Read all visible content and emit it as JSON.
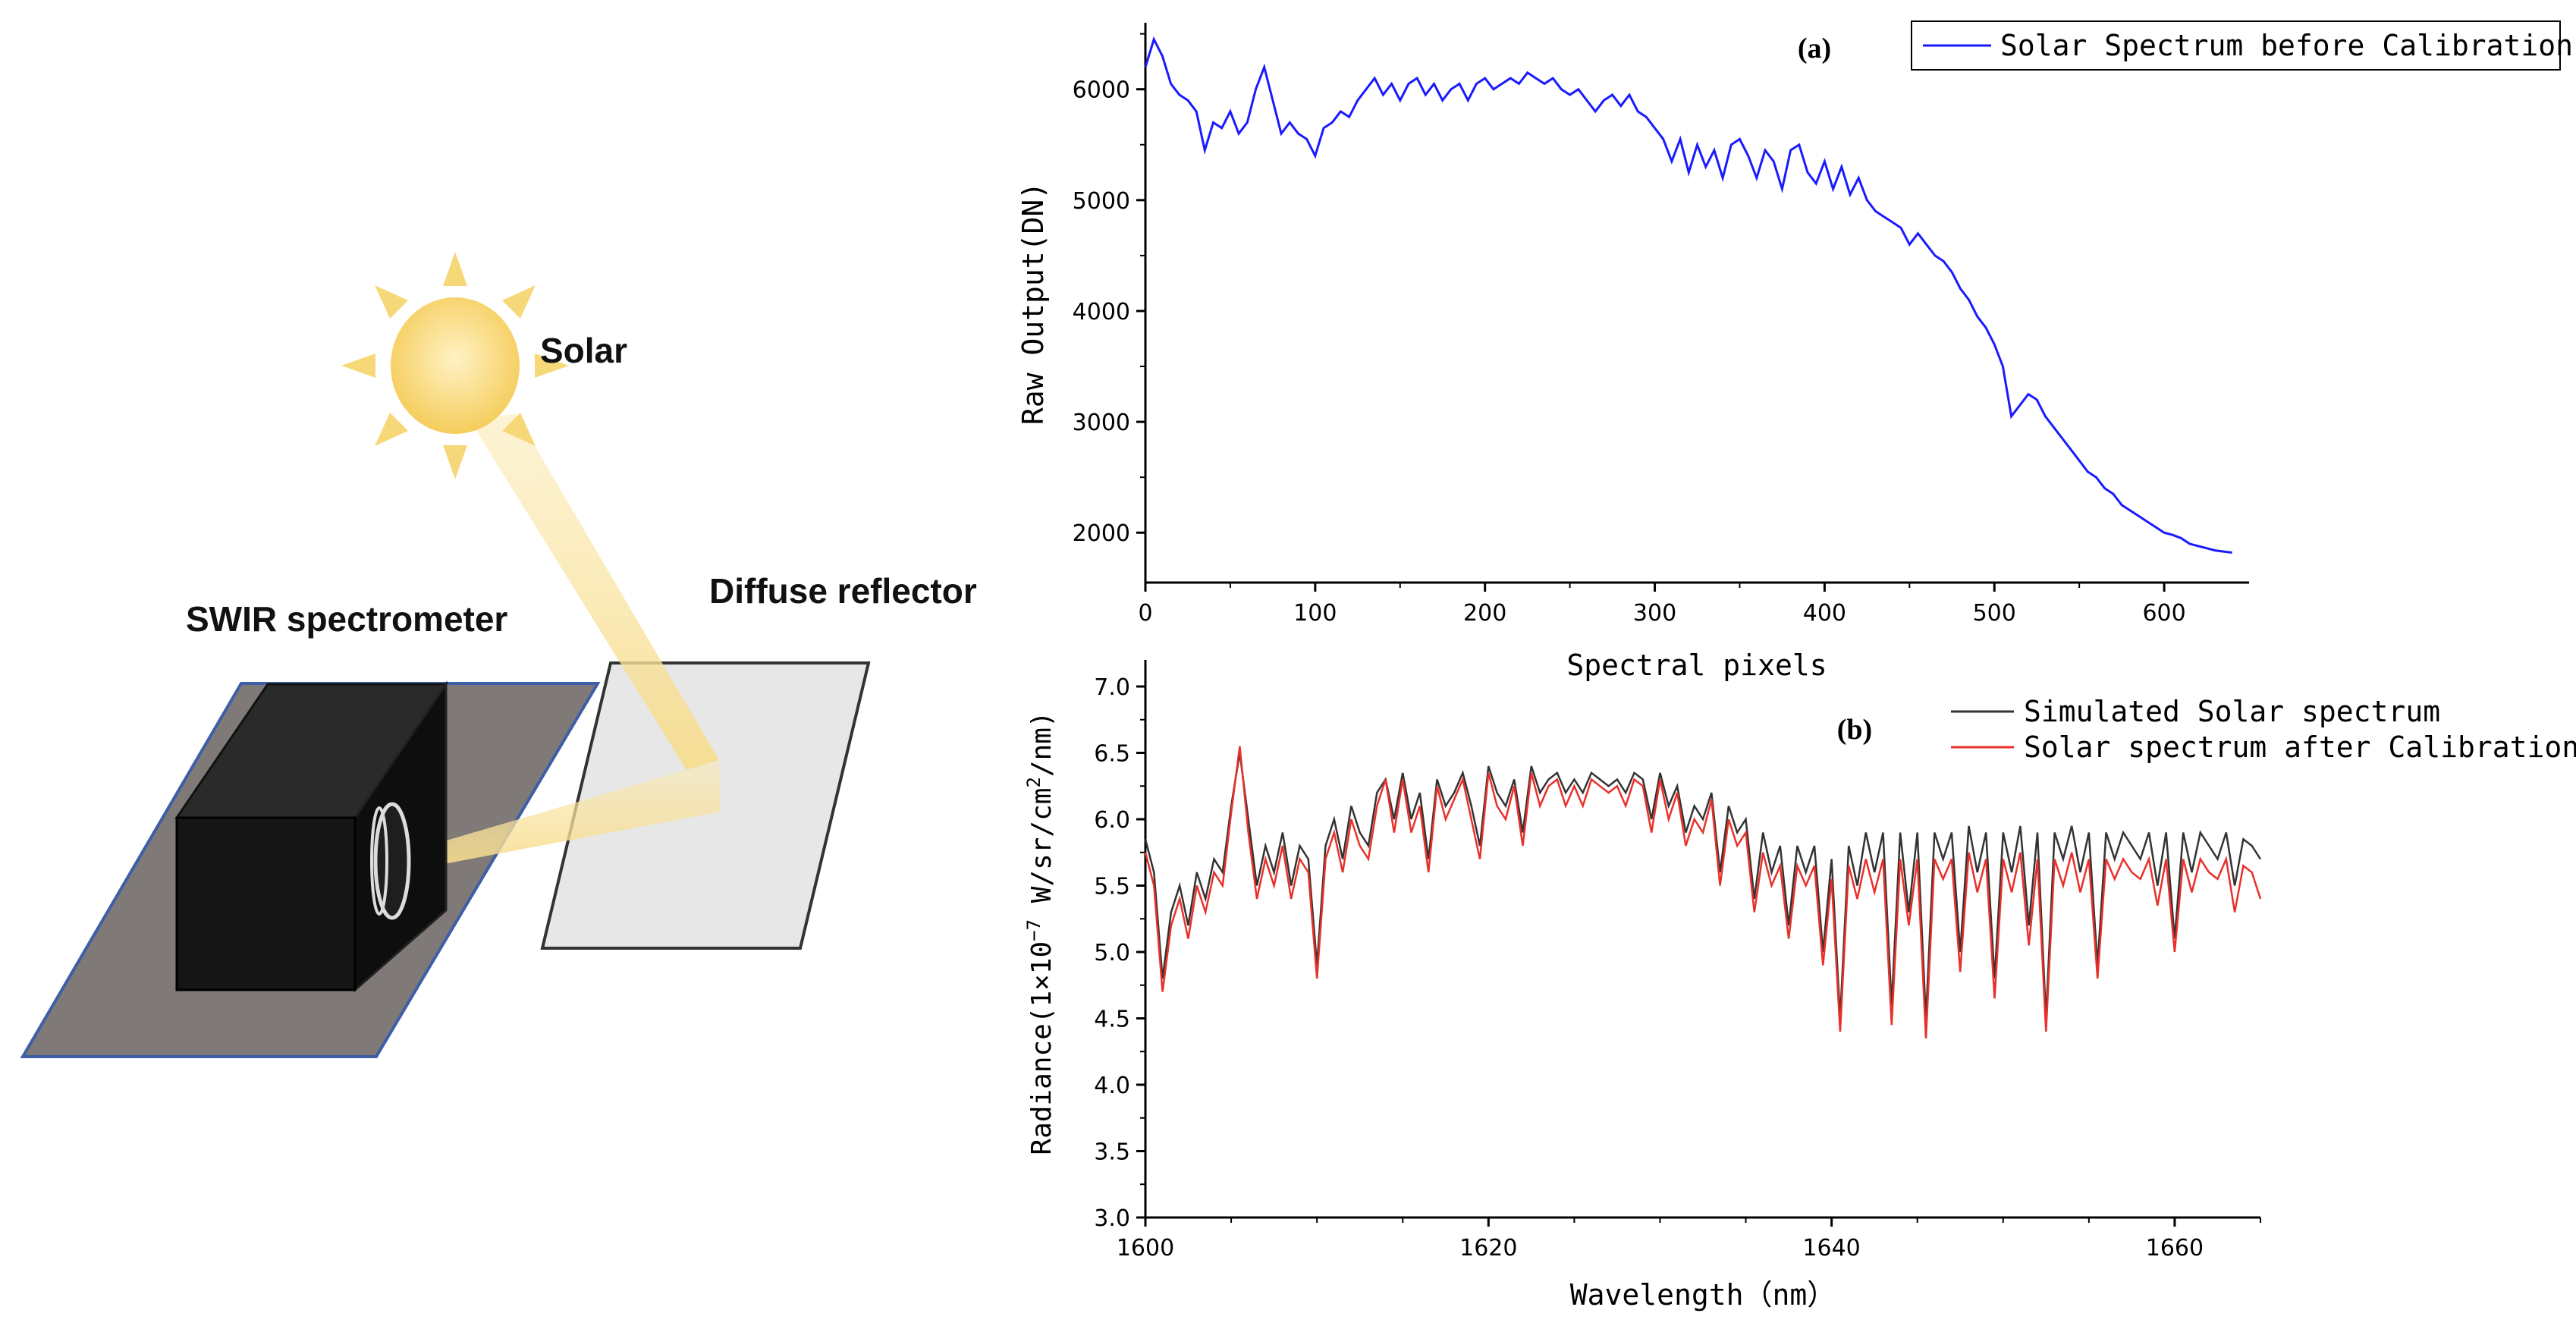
{
  "scene": {
    "sun_label": "Solar",
    "spectrometer_label": "SWIR spectrometer",
    "reflector_label": "Diffuse reflector",
    "colors": {
      "sun": "#f7d36b",
      "beam": "#f9e7a6",
      "platform": "#7f7a78",
      "platform_border": "#3f5ea8",
      "box": "#171717",
      "reflector": "#e7e7e7"
    }
  },
  "chart_data": [
    {
      "type": "line",
      "panel_label": "(a)",
      "xlabel": "Spectral pixels",
      "ylabel": "Raw Output(DN)",
      "xlim": [
        0,
        650
      ],
      "ylim": [
        1550,
        6600
      ],
      "xticks": [
        0,
        100,
        200,
        300,
        400,
        500,
        600
      ],
      "yticks": [
        2000,
        3000,
        4000,
        5000,
        6000
      ],
      "legend_position": "top-right",
      "series": [
        {
          "name": "Solar Spectrum before Calibration",
          "color": "#1a1aff",
          "x": [
            0,
            5,
            10,
            15,
            20,
            25,
            30,
            35,
            40,
            45,
            50,
            55,
            60,
            65,
            70,
            75,
            80,
            85,
            90,
            95,
            100,
            105,
            110,
            115,
            120,
            125,
            130,
            135,
            140,
            145,
            150,
            155,
            160,
            165,
            170,
            175,
            180,
            185,
            190,
            195,
            200,
            205,
            210,
            215,
            220,
            225,
            230,
            235,
            240,
            245,
            250,
            255,
            260,
            265,
            270,
            275,
            280,
            285,
            290,
            295,
            300,
            305,
            310,
            315,
            320,
            325,
            330,
            335,
            340,
            345,
            350,
            355,
            360,
            365,
            370,
            375,
            380,
            385,
            390,
            395,
            400,
            405,
            410,
            415,
            420,
            425,
            430,
            435,
            440,
            445,
            450,
            455,
            460,
            465,
            470,
            475,
            480,
            485,
            490,
            495,
            500,
            505,
            510,
            515,
            520,
            525,
            530,
            535,
            540,
            545,
            550,
            555,
            560,
            565,
            570,
            575,
            580,
            585,
            590,
            595,
            600,
            605,
            610,
            615,
            620,
            625,
            630,
            635,
            640
          ],
          "y": [
            6200,
            6450,
            6300,
            6050,
            5950,
            5900,
            5800,
            5450,
            5700,
            5650,
            5800,
            5600,
            5700,
            6000,
            6200,
            5900,
            5600,
            5700,
            5600,
            5550,
            5400,
            5650,
            5700,
            5800,
            5750,
            5900,
            6000,
            6100,
            5950,
            6050,
            5900,
            6050,
            6100,
            5950,
            6050,
            5900,
            6000,
            6050,
            5900,
            6050,
            6100,
            6000,
            6050,
            6100,
            6050,
            6150,
            6100,
            6050,
            6100,
            6000,
            5950,
            6000,
            5900,
            5800,
            5900,
            5950,
            5850,
            5950,
            5800,
            5750,
            5650,
            5550,
            5350,
            5550,
            5250,
            5500,
            5300,
            5450,
            5200,
            5500,
            5550,
            5400,
            5200,
            5450,
            5350,
            5100,
            5450,
            5500,
            5250,
            5150,
            5350,
            5100,
            5300,
            5050,
            5200,
            5000,
            4900,
            4850,
            4800,
            4750,
            4600,
            4700,
            4600,
            4500,
            4450,
            4350,
            4200,
            4100,
            3950,
            3850,
            3700,
            3500,
            3050,
            3150,
            3250,
            3200,
            3050,
            2950,
            2850,
            2750,
            2650,
            2550,
            2500,
            2400,
            2350,
            2250,
            2200,
            2150,
            2100,
            2050,
            2000,
            1980,
            1950,
            1900,
            1880,
            1860,
            1840,
            1830,
            1820
          ]
        }
      ]
    },
    {
      "type": "line",
      "panel_label": "(b)",
      "xlabel": "Wavelength（nm）",
      "ylabel": "Radiance(1×10",
      "ylabel_exp": "−7",
      "ylabel_tail": " W/sr/cm",
      "ylabel_exp2": "2",
      "ylabel_end": "/nm)",
      "xlim": [
        1600,
        1665
      ],
      "ylim": [
        3.0,
        7.2
      ],
      "xticks": [
        1600,
        1620,
        1640,
        1660
      ],
      "yticks": [
        3.0,
        3.5,
        4.0,
        4.5,
        5.0,
        5.5,
        6.0,
        6.5,
        7.0
      ],
      "yticklabels": [
        "3.0",
        "3.5",
        "4.0",
        "4.5",
        "5.0",
        "5.5",
        "6.0",
        "6.5",
        "7.0"
      ],
      "legend_position": "top-right",
      "series": [
        {
          "name": "Simulated Solar spectrum",
          "color": "#333333",
          "x": [
            1600,
            1600.5,
            1601,
            1601.5,
            1602,
            1602.5,
            1603,
            1603.5,
            1604,
            1604.5,
            1605,
            1605.5,
            1606,
            1606.5,
            1607,
            1607.5,
            1608,
            1608.5,
            1609,
            1609.5,
            1610,
            1610.5,
            1611,
            1611.5,
            1612,
            1612.5,
            1613,
            1613.5,
            1614,
            1614.5,
            1615,
            1615.5,
            1616,
            1616.5,
            1617,
            1617.5,
            1618,
            1618.5,
            1619,
            1619.5,
            1620,
            1620.5,
            1621,
            1621.5,
            1622,
            1622.5,
            1623,
            1623.5,
            1624,
            1624.5,
            1625,
            1625.5,
            1626,
            1626.5,
            1627,
            1627.5,
            1628,
            1628.5,
            1629,
            1629.5,
            1630,
            1630.5,
            1631,
            1631.5,
            1632,
            1632.5,
            1633,
            1633.5,
            1634,
            1634.5,
            1635,
            1635.5,
            1636,
            1636.5,
            1637,
            1637.5,
            1638,
            1638.5,
            1639,
            1639.5,
            1640,
            1640.5,
            1641,
            1641.5,
            1642,
            1642.5,
            1643,
            1643.5,
            1644,
            1644.5,
            1645,
            1645.5,
            1646,
            1646.5,
            1647,
            1647.5,
            1648,
            1648.5,
            1649,
            1649.5,
            1650,
            1650.5,
            1651,
            1651.5,
            1652,
            1652.5,
            1653,
            1653.5,
            1654,
            1654.5,
            1655,
            1655.5,
            1656,
            1656.5,
            1657,
            1657.5,
            1658,
            1658.5,
            1659,
            1659.5,
            1660,
            1660.5,
            1661,
            1661.5,
            1662,
            1662.5,
            1663,
            1663.5,
            1664,
            1664.5,
            1665
          ],
          "y": [
            5.85,
            5.6,
            4.8,
            5.3,
            5.5,
            5.2,
            5.6,
            5.4,
            5.7,
            5.6,
            6.1,
            6.5,
            6.0,
            5.5,
            5.8,
            5.6,
            5.9,
            5.5,
            5.8,
            5.7,
            4.9,
            5.8,
            6.0,
            5.7,
            6.1,
            5.9,
            5.8,
            6.2,
            6.3,
            6.0,
            6.35,
            6.0,
            6.2,
            5.7,
            6.3,
            6.1,
            6.2,
            6.35,
            6.1,
            5.8,
            6.4,
            6.2,
            6.1,
            6.3,
            5.9,
            6.4,
            6.2,
            6.3,
            6.35,
            6.2,
            6.3,
            6.2,
            6.35,
            6.3,
            6.25,
            6.3,
            6.2,
            6.35,
            6.3,
            6.0,
            6.35,
            6.1,
            6.25,
            5.9,
            6.1,
            6.0,
            6.2,
            5.6,
            6.1,
            5.9,
            6.0,
            5.4,
            5.9,
            5.6,
            5.8,
            5.2,
            5.8,
            5.6,
            5.8,
            5.0,
            5.7,
            4.5,
            5.8,
            5.5,
            5.9,
            5.6,
            5.9,
            4.6,
            5.9,
            5.3,
            5.9,
            4.5,
            5.9,
            5.7,
            5.9,
            5.0,
            5.95,
            5.6,
            5.9,
            4.8,
            5.9,
            5.6,
            5.95,
            5.2,
            5.9,
            4.5,
            5.9,
            5.7,
            5.95,
            5.6,
            5.9,
            4.9,
            5.9,
            5.7,
            5.9,
            5.8,
            5.7,
            5.9,
            5.5,
            5.9,
            5.1,
            5.9,
            5.6,
            5.9,
            5.8,
            5.7,
            5.9,
            5.5,
            5.85,
            5.8,
            5.7
          ]
        },
        {
          "name": "Solar spectrum after Calibration",
          "color": "#e8312a",
          "x": [
            1600,
            1600.5,
            1601,
            1601.5,
            1602,
            1602.5,
            1603,
            1603.5,
            1604,
            1604.5,
            1605,
            1605.5,
            1606,
            1606.5,
            1607,
            1607.5,
            1608,
            1608.5,
            1609,
            1609.5,
            1610,
            1610.5,
            1611,
            1611.5,
            1612,
            1612.5,
            1613,
            1613.5,
            1614,
            1614.5,
            1615,
            1615.5,
            1616,
            1616.5,
            1617,
            1617.5,
            1618,
            1618.5,
            1619,
            1619.5,
            1620,
            1620.5,
            1621,
            1621.5,
            1622,
            1622.5,
            1623,
            1623.5,
            1624,
            1624.5,
            1625,
            1625.5,
            1626,
            1626.5,
            1627,
            1627.5,
            1628,
            1628.5,
            1629,
            1629.5,
            1630,
            1630.5,
            1631,
            1631.5,
            1632,
            1632.5,
            1633,
            1633.5,
            1634,
            1634.5,
            1635,
            1635.5,
            1636,
            1636.5,
            1637,
            1637.5,
            1638,
            1638.5,
            1639,
            1639.5,
            1640,
            1640.5,
            1641,
            1641.5,
            1642,
            1642.5,
            1643,
            1643.5,
            1644,
            1644.5,
            1645,
            1645.5,
            1646,
            1646.5,
            1647,
            1647.5,
            1648,
            1648.5,
            1649,
            1649.5,
            1650,
            1650.5,
            1651,
            1651.5,
            1652,
            1652.5,
            1653,
            1653.5,
            1654,
            1654.5,
            1655,
            1655.5,
            1656,
            1656.5,
            1657,
            1657.5,
            1658,
            1658.5,
            1659,
            1659.5,
            1660,
            1660.5,
            1661,
            1661.5,
            1662,
            1662.5,
            1663,
            1663.5,
            1664,
            1664.5,
            1665
          ],
          "y": [
            5.75,
            5.5,
            4.7,
            5.2,
            5.4,
            5.1,
            5.5,
            5.3,
            5.6,
            5.5,
            6.05,
            6.55,
            5.9,
            5.4,
            5.7,
            5.5,
            5.8,
            5.4,
            5.7,
            5.6,
            4.8,
            5.7,
            5.9,
            5.6,
            6.0,
            5.8,
            5.7,
            6.1,
            6.3,
            5.9,
            6.3,
            5.9,
            6.1,
            5.6,
            6.25,
            6.0,
            6.15,
            6.3,
            6.0,
            5.7,
            6.35,
            6.1,
            6.0,
            6.25,
            5.8,
            6.35,
            6.1,
            6.25,
            6.3,
            6.1,
            6.25,
            6.1,
            6.3,
            6.25,
            6.2,
            6.25,
            6.1,
            6.3,
            6.25,
            5.9,
            6.3,
            6.0,
            6.2,
            5.8,
            6.0,
            5.9,
            6.15,
            5.5,
            6.0,
            5.8,
            5.9,
            5.3,
            5.75,
            5.5,
            5.65,
            5.1,
            5.65,
            5.5,
            5.65,
            4.9,
            5.55,
            4.4,
            5.65,
            5.4,
            5.7,
            5.45,
            5.7,
            4.45,
            5.7,
            5.2,
            5.7,
            4.35,
            5.7,
            5.55,
            5.7,
            4.85,
            5.75,
            5.45,
            5.7,
            4.65,
            5.7,
            5.45,
            5.75,
            5.05,
            5.7,
            4.4,
            5.7,
            5.5,
            5.75,
            5.45,
            5.7,
            4.8,
            5.7,
            5.55,
            5.7,
            5.6,
            5.55,
            5.7,
            5.35,
            5.7,
            5.0,
            5.7,
            5.45,
            5.7,
            5.6,
            5.55,
            5.7,
            5.3,
            5.65,
            5.6,
            5.4
          ]
        }
      ]
    }
  ]
}
